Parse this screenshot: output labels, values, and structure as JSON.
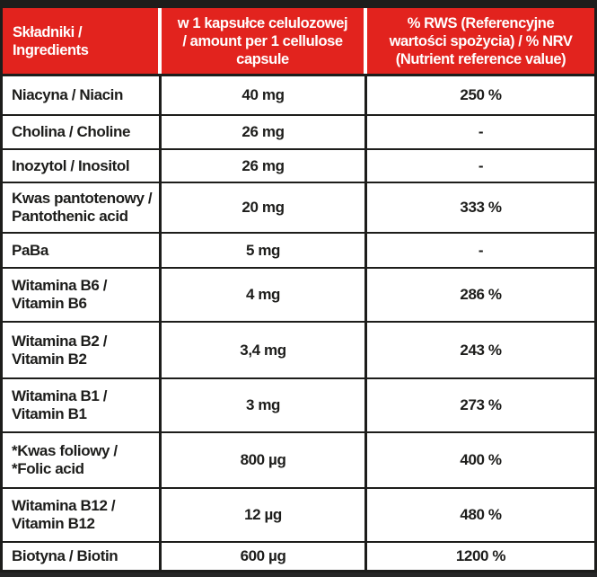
{
  "table_title": "Supplement facts table",
  "colors": {
    "header_red": "#e2231e",
    "border_black": "#1d1d1b",
    "header_text_white": "#ffffff",
    "body_text_black": "#1d1d1b"
  },
  "header": {
    "col_ingredients": "Składniki /\nIngredients",
    "col_amount": "w 1 kapsułce celulozowej\n/ amount per 1 cellulose\ncapsule",
    "col_nrv": "% RWS (Referencyjne\nwartości spożycia) / % NRV\n(Nutrient reference value)"
  },
  "rows": [
    {
      "name": "Niacyna / Niacin",
      "amount": "40 mg",
      "nrv": "250 %"
    },
    {
      "name": "Cholina / Choline",
      "amount": "26 mg",
      "nrv": "-"
    },
    {
      "name": "Inozytol / Inositol",
      "amount": "26 mg",
      "nrv": "-"
    },
    {
      "name": "Kwas pantotenowy /\nPantothenic acid",
      "amount": "20 mg",
      "nrv": "333 %"
    },
    {
      "name": "PaBa",
      "amount": "5 mg",
      "nrv": "-"
    },
    {
      "name": "Witamina B6 /\nVitamin B6",
      "amount": "4 mg",
      "nrv": "286 %"
    },
    {
      "name": "Witamina B2 /\nVitamin B2",
      "amount": "3,4 mg",
      "nrv": "243 %"
    },
    {
      "name": "Witamina B1 /\nVitamin B1",
      "amount": "3 mg",
      "nrv": "273 %"
    },
    {
      "name": "*Kwas foliowy /\n*Folic acid",
      "amount": "800 µg",
      "nrv": "400 %"
    },
    {
      "name": "Witamina B12 /\nVitamin B12",
      "amount": "12 µg",
      "nrv": "480 %"
    },
    {
      "name": "Biotyna / Biotin",
      "amount": "600 µg",
      "nrv": "1200 %"
    }
  ]
}
